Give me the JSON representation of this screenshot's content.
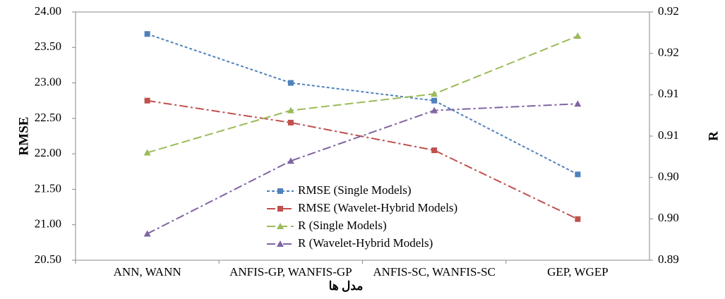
{
  "chart_data": {
    "type": "line",
    "x_label": "مدل ها",
    "y_label": "RMSE",
    "y2_label": "R",
    "categories": [
      "ANN, WANN",
      "ANFIS-GP, WANFIS-GP",
      "ANFIS-SC, WANFIS-SC",
      "GEP, WGEP"
    ],
    "ylim": [
      20.5,
      24
    ],
    "yticks": [
      {
        "value": 20.5,
        "label": "20.50"
      },
      {
        "value": 21,
        "label": "21.00"
      },
      {
        "value": 21.5,
        "label": "21.50"
      },
      {
        "value": 22,
        "label": "22.00"
      },
      {
        "value": 22.5,
        "label": "22.50"
      },
      {
        "value": 23,
        "label": "23.00"
      },
      {
        "value": 23.5,
        "label": "23.50"
      },
      {
        "value": 24,
        "label": "24.00"
      }
    ],
    "y2lim": [
      0.89,
      0.92
    ],
    "y2ticks": [
      0.89,
      {
        "value": 0.895,
        "label": "0.90"
      },
      {
        "value": 0.9,
        "label": "0.90"
      },
      {
        "value": 0.905,
        "label": "0.91"
      },
      {
        "value": 0.91,
        "label": "0.91"
      },
      {
        "value": 0.915,
        "label": "0.92"
      },
      {
        "value": 0.92,
        "label": "0.92"
      }
    ],
    "series": [
      {
        "name": "RMSE (Single Models)",
        "color": "#4f81bd",
        "marker": "square",
        "dash": "dot",
        "values": [
          23.69,
          23.0,
          22.75,
          21.71
        ]
      },
      {
        "name": "RMSE (Wavelet-Hybrid Models)",
        "color": "#c0504d",
        "marker": "square",
        "dash": "dash-dot",
        "values": [
          22.75,
          22.44,
          22.05,
          21.08
        ]
      },
      {
        "name": "R (Single Models)",
        "color": "#9bbb59",
        "marker": "triangle",
        "dash": "dash",
        "axis": "y2",
        "values": [
          0.903,
          0.9081,
          0.9101,
          0.9171
        ]
      },
      {
        "name": "R (Wavelet-Hybrid Models)",
        "color": "#8064a2",
        "marker": "triangle",
        "dash": "dash-dot",
        "axis": "y2",
        "values": [
          0.8932,
          0.902,
          0.9081,
          0.9089
        ]
      }
    ]
  }
}
